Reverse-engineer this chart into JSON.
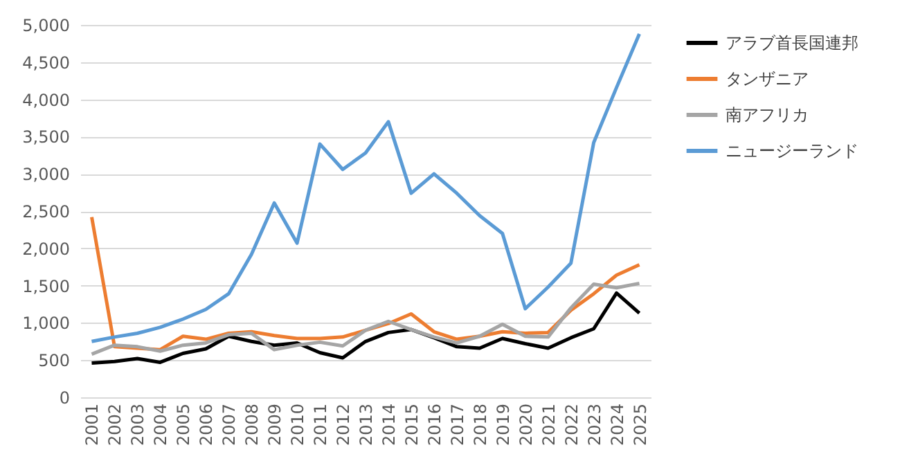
{
  "chart_data": {
    "type": "line",
    "categories": [
      "2001",
      "2002",
      "2003",
      "2004",
      "2005",
      "2006",
      "2007",
      "2008",
      "2009",
      "2010",
      "2011",
      "2012",
      "2013",
      "2014",
      "2015",
      "2016",
      "2017",
      "2018",
      "2019",
      "2020",
      "2021",
      "2022",
      "2023",
      "2024",
      "2025"
    ],
    "series": [
      {
        "name": "アラブ首長国連邦",
        "color": "#000000",
        "values": [
          460,
          480,
          520,
          470,
          590,
          650,
          820,
          750,
          700,
          730,
          600,
          530,
          750,
          870,
          910,
          800,
          680,
          660,
          790,
          720,
          660,
          800,
          920,
          1400,
          1130
        ]
      },
      {
        "name": "タンザニア",
        "color": "#ed7d31",
        "values": [
          2420,
          680,
          660,
          640,
          820,
          780,
          860,
          880,
          830,
          790,
          790,
          810,
          900,
          990,
          1120,
          880,
          780,
          820,
          880,
          860,
          870,
          1170,
          1390,
          1640,
          1780
        ]
      },
      {
        "name": "南アフリカ",
        "color": "#a5a5a5",
        "values": [
          580,
          700,
          680,
          620,
          700,
          730,
          840,
          860,
          640,
          700,
          740,
          690,
          900,
          1020,
          910,
          810,
          730,
          820,
          980,
          820,
          810,
          1200,
          1520,
          1470,
          1530
        ]
      },
      {
        "name": "ニュージーランド",
        "color": "#5b9bd5",
        "values": [
          750,
          810,
          860,
          940,
          1050,
          1180,
          1390,
          1920,
          2610,
          2070,
          3400,
          3060,
          3280,
          3700,
          2740,
          3000,
          2740,
          2440,
          2200,
          1190,
          1480,
          1800,
          3420,
          4160,
          4880
        ]
      }
    ],
    "ylim": [
      0,
      5000
    ],
    "yticks": [
      {
        "value": 0,
        "label": "0"
      },
      {
        "value": 500,
        "label": "500"
      },
      {
        "value": 1000,
        "label": "1,000"
      },
      {
        "value": 1500,
        "label": "1,500"
      },
      {
        "value": 2000,
        "label": "2,000"
      },
      {
        "value": 2500,
        "label": "2,500"
      },
      {
        "value": 3000,
        "label": "3,000"
      },
      {
        "value": 3500,
        "label": "3,500"
      },
      {
        "value": 4000,
        "label": "4,000"
      },
      {
        "value": 4500,
        "label": "4,500"
      },
      {
        "value": 5000,
        "label": "5,000"
      }
    ],
    "grid": "y",
    "legend": "right",
    "marker": "none",
    "line_style": "solid"
  }
}
